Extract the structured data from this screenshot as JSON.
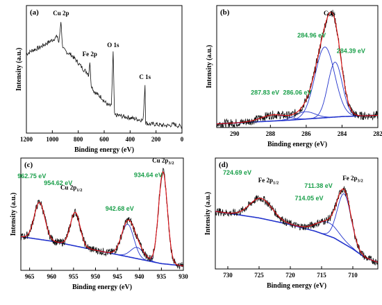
{
  "colors": {
    "raw": "#111111",
    "fit": "#e01010",
    "comp": "#2233cc",
    "bg": "#2233cc",
    "green": "#1a9f4a"
  },
  "chart_data": [
    {
      "panel": "(a)",
      "type": "line",
      "xlabel": "Binding energy (eV)",
      "ylabel": "Intensity (a.u.)",
      "xlim": [
        1200,
        0
      ],
      "xticks": [
        "1200",
        "1000",
        "800",
        "600",
        "400",
        "200",
        "0"
      ],
      "xtick_values": [
        1200,
        1000,
        800,
        600,
        400,
        200,
        0
      ],
      "ylim": [
        0,
        1
      ],
      "peaks_labels": [
        {
          "text": "Cu 2p",
          "x": 933
        },
        {
          "text": "Fe 2p",
          "x": 711
        },
        {
          "text": "O 1s",
          "x": 531
        },
        {
          "text": "C 1s",
          "x": 285
        }
      ],
      "series": [
        {
          "points": [
            [
              1200,
              0.62
            ],
            [
              1150,
              0.65
            ],
            [
              1100,
              0.67
            ],
            [
              1050,
              0.7
            ],
            [
              1000,
              0.73
            ],
            [
              960,
              0.76
            ],
            [
              950,
              0.7
            ],
            [
              934,
              0.88
            ],
            [
              920,
              0.66
            ],
            [
              880,
              0.63
            ],
            [
              850,
              0.61
            ],
            [
              800,
              0.55
            ],
            [
              760,
              0.5
            ],
            [
              725,
              0.47
            ],
            [
              720,
              0.45
            ],
            [
              711,
              0.56
            ],
            [
              700,
              0.38
            ],
            [
              680,
              0.33
            ],
            [
              650,
              0.3
            ],
            [
              620,
              0.28
            ],
            [
              600,
              0.25
            ],
            [
              570,
              0.22
            ],
            [
              545,
              0.21
            ],
            [
              531,
              0.63
            ],
            [
              520,
              0.14
            ],
            [
              500,
              0.14
            ],
            [
              450,
              0.13
            ],
            [
              400,
              0.12
            ],
            [
              350,
              0.11
            ],
            [
              300,
              0.1
            ],
            [
              285,
              0.38
            ],
            [
              280,
              0.08
            ],
            [
              250,
              0.07
            ],
            [
              200,
              0.07
            ],
            [
              150,
              0.06
            ],
            [
              100,
              0.06
            ],
            [
              60,
              0.07
            ],
            [
              40,
              0.06
            ],
            [
              0,
              0.05
            ]
          ]
        }
      ]
    },
    {
      "panel": "(b)",
      "type": "line",
      "xlabel": "Binding energy (eV)",
      "ylabel": "Intensity (a.u.)",
      "xlim": [
        291,
        282
      ],
      "xticks": [
        "290",
        "288",
        "286",
        "284",
        "282"
      ],
      "xtick_values": [
        290,
        288,
        286,
        284,
        282
      ],
      "ylim": [
        0,
        1
      ],
      "title_peak": {
        "text": "C 1s",
        "x": 284.7,
        "y": 0.92
      },
      "annotations": [
        {
          "text": "287.83 eV",
          "x": 288.3,
          "y": 0.27
        },
        {
          "text": "286.06 eV",
          "x": 286.5,
          "y": 0.27
        },
        {
          "text": "284.96 eV",
          "x": 285.7,
          "y": 0.74
        },
        {
          "text": "284.39 eV",
          "x": 283.5,
          "y": 0.61
        }
      ],
      "background": {
        "points": [
          [
            291,
            0.03
          ],
          [
            287,
            0.06
          ],
          [
            285,
            0.08
          ],
          [
            284,
            0.09
          ],
          [
            282,
            0.1
          ]
        ]
      },
      "components": [
        {
          "center": 284.96,
          "height": 0.58,
          "width": 0.55
        },
        {
          "center": 284.39,
          "height": 0.45,
          "width": 0.4
        },
        {
          "center": 286.06,
          "height": 0.06,
          "width": 0.55
        },
        {
          "center": 287.83,
          "height": 0.05,
          "width": 0.7
        }
      ]
    },
    {
      "panel": "(c)",
      "type": "line",
      "xlabel": "Binding energy (eV)",
      "ylabel": "Intensity (a.u.)",
      "xlim": [
        967,
        930
      ],
      "xticks": [
        "965",
        "960",
        "955",
        "950",
        "945",
        "940",
        "935",
        "930"
      ],
      "xtick_values": [
        965,
        960,
        955,
        950,
        945,
        940,
        935,
        930
      ],
      "ylim": [
        0,
        1
      ],
      "title_peaks": [
        {
          "text": "Cu 2p",
          "sub": "1/2",
          "x": 955.5,
          "y": 0.72
        },
        {
          "text": "Cu 2p",
          "sub": "3/2",
          "x": 934.6,
          "y": 0.96
        }
      ],
      "annotations": [
        {
          "text": "962.75 eV",
          "x": 964.5,
          "y": 0.82
        },
        {
          "text": "954.62 eV",
          "x": 958.5,
          "y": 0.76
        },
        {
          "text": "942.68 eV",
          "x": 944.5,
          "y": 0.53
        },
        {
          "text": "934.64 eV",
          "x": 938.0,
          "y": 0.83
        }
      ],
      "background": {
        "points": [
          [
            967,
            0.3
          ],
          [
            960,
            0.26
          ],
          [
            955,
            0.22
          ],
          [
            950,
            0.18
          ],
          [
            945,
            0.14
          ],
          [
            940,
            0.1
          ],
          [
            935,
            0.06
          ],
          [
            930,
            0.04
          ]
        ]
      },
      "components": [
        {
          "center": 962.75,
          "height": 0.33,
          "width": 1.2
        },
        {
          "center": 954.62,
          "height": 0.3,
          "width": 1.1
        },
        {
          "center": 942.68,
          "height": 0.29,
          "width": 1.4
        },
        {
          "center": 940.5,
          "height": 0.1,
          "width": 1.5
        },
        {
          "center": 934.64,
          "height": 0.82,
          "width": 1.0
        }
      ]
    },
    {
      "panel": "(d)",
      "type": "line",
      "xlabel": "Binding energy (eV)",
      "ylabel": "Intensity (a.u.)",
      "xlim": [
        732,
        706
      ],
      "xticks": [
        "730",
        "725",
        "720",
        "715",
        "710"
      ],
      "xtick_values": [
        730,
        725,
        720,
        715,
        710
      ],
      "ylim": [
        0,
        1
      ],
      "title_peaks": [
        {
          "text": "Fe 2p",
          "sub": "1/2",
          "x": 723.5,
          "y": 0.78
        },
        {
          "text": "Fe 2p",
          "sub": "3/2",
          "x": 710.0,
          "y": 0.8
        }
      ],
      "annotations": [
        {
          "text": "724.69 eV",
          "x": 728.5,
          "y": 0.85
        },
        {
          "text": "711.38 eV",
          "x": 715.5,
          "y": 0.73
        },
        {
          "text": "714.05 eV",
          "x": 717.0,
          "y": 0.62
        }
      ],
      "background": {
        "points": [
          [
            732,
            0.52
          ],
          [
            725,
            0.46
          ],
          [
            720,
            0.4
          ],
          [
            716,
            0.34
          ],
          [
            713,
            0.28
          ],
          [
            710,
            0.18
          ],
          [
            708,
            0.1
          ],
          [
            706,
            0.06
          ]
        ]
      },
      "components": [
        {
          "center": 724.69,
          "height": 0.18,
          "width": 1.8
        },
        {
          "center": 714.05,
          "height": 0.12,
          "width": 1.8
        },
        {
          "center": 711.38,
          "height": 0.45,
          "width": 1.1
        }
      ]
    }
  ]
}
